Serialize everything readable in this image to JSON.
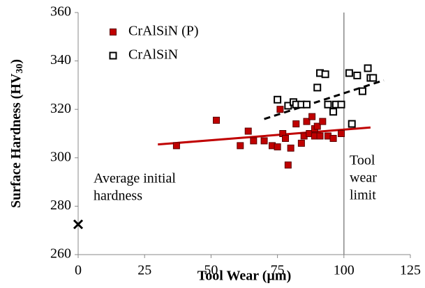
{
  "chart_data": {
    "type": "scatter",
    "x_label": "Tool Wear (µm)",
    "y_label_parts": [
      "Surface Hardness (HV",
      "30",
      ")"
    ],
    "xlim": [
      0,
      125
    ],
    "xticks": [
      0,
      25,
      50,
      75,
      100,
      125
    ],
    "ylim": [
      260,
      360
    ],
    "yticks": [
      260,
      280,
      300,
      320,
      340,
      360
    ],
    "grid": false,
    "legend": "upper left",
    "series": [
      {
        "name": "CrAlSiN (P)",
        "color": "#c00000",
        "marker": "filled",
        "x": [
          37,
          52,
          61,
          64,
          66,
          70,
          73,
          75,
          76,
          77,
          78,
          79,
          80,
          82,
          84,
          85,
          86,
          87,
          88,
          89,
          89,
          90,
          91,
          92,
          94,
          96,
          99
        ],
        "values": [
          305,
          315.5,
          305,
          311,
          307,
          307,
          305,
          304.5,
          320,
          310,
          308,
          297,
          304,
          314,
          306,
          309,
          315,
          310,
          317,
          309,
          312,
          313,
          309,
          315,
          309,
          308,
          310
        ],
        "trend": {
          "x": [
            30,
            110
          ],
          "values": [
            305.5,
            312.5
          ],
          "color": "#c00000",
          "dashed": false
        }
      },
      {
        "name": "CrAlSiN",
        "color": "#000000",
        "marker": "open",
        "x": [
          75,
          79,
          81,
          82,
          84,
          86,
          90,
          91,
          93,
          94,
          96,
          97,
          99,
          102,
          103,
          105,
          107,
          109,
          110,
          111
        ],
        "values": [
          324,
          321.5,
          323,
          322,
          322,
          322,
          329,
          335,
          334.5,
          322,
          319,
          322,
          322,
          335,
          314,
          334,
          327.5,
          337,
          333,
          333
        ],
        "trend": {
          "x": [
            70,
            115
          ],
          "values": [
            316,
            332
          ],
          "color": "#000000",
          "dashed": true
        }
      }
    ],
    "initial_point": {
      "x": 0,
      "y": 272.5
    },
    "limit_x": 100,
    "annotations": [
      {
        "lines": [
          "Average initial",
          "hardness"
        ]
      },
      {
        "lines": [
          "Tool",
          "wear",
          "limit"
        ]
      }
    ]
  }
}
